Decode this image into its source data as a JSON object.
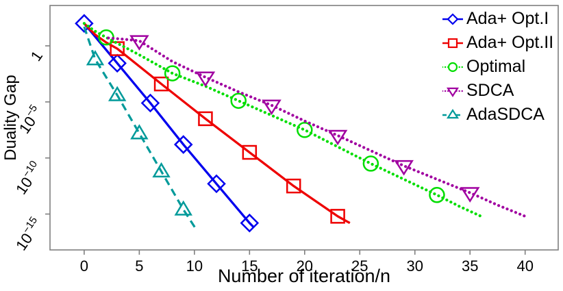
{
  "chart_data": {
    "type": "line",
    "title": "",
    "xlabel": "Number of iteration/n",
    "ylabel": "Duality Gap",
    "x_scale": "linear",
    "y_scale": "log10",
    "xlim": [
      -3.1,
      43.0
    ],
    "ylim_log10": [
      -18.2,
      3.6
    ],
    "x_ticks": [
      0,
      5,
      10,
      15,
      20,
      25,
      30,
      35,
      40
    ],
    "y_ticks": [
      {
        "log10": 0,
        "main": "1",
        "sup": ""
      },
      {
        "log10": -5,
        "main": "10",
        "sup": "−5"
      },
      {
        "log10": -10,
        "main": "10",
        "sup": "−10"
      },
      {
        "log10": -15,
        "main": "10",
        "sup": "−15"
      }
    ],
    "grid": false,
    "legend_position": "top-right",
    "frame_color": "#7f7f7f",
    "text_color": "#000000",
    "series": [
      {
        "name": "Ada+ Opt.I",
        "color": "#0000ee",
        "line_style": "solid",
        "marker": "diamond",
        "line": [
          [
            0,
            2.0
          ],
          [
            3,
            -1.55
          ],
          [
            6,
            -5.1
          ],
          [
            9,
            -8.8
          ],
          [
            12,
            -12.3
          ],
          [
            15,
            -15.8
          ],
          [
            15.4,
            -16.2
          ]
        ],
        "marker_points": [
          [
            0,
            2.0
          ],
          [
            3,
            -1.55
          ],
          [
            6,
            -5.1
          ],
          [
            9,
            -8.8
          ],
          [
            12,
            -12.3
          ],
          [
            15,
            -15.8
          ]
        ]
      },
      {
        "name": "Ada+ Opt.II",
        "color": "#ee0000",
        "line_style": "solid",
        "marker": "square",
        "line": [
          [
            0,
            2.0
          ],
          [
            1,
            1.0
          ],
          [
            2,
            0.3
          ],
          [
            3,
            -0.25
          ],
          [
            7,
            -3.4
          ],
          [
            11,
            -6.5
          ],
          [
            15,
            -9.5
          ],
          [
            19,
            -12.5
          ],
          [
            23,
            -15.2
          ],
          [
            24.1,
            -15.8
          ]
        ],
        "marker_points": [
          [
            3,
            -0.25
          ],
          [
            7,
            -3.4
          ],
          [
            11,
            -6.5
          ],
          [
            15,
            -9.5
          ],
          [
            19,
            -12.5
          ],
          [
            23,
            -15.2
          ]
        ]
      },
      {
        "name": "Optimal",
        "color": "#00dd00",
        "line_style": "dotted",
        "marker": "circle",
        "line": [
          [
            0,
            2.0
          ],
          [
            1,
            1.3
          ],
          [
            2,
            0.75
          ],
          [
            5,
            -0.8
          ],
          [
            8,
            -2.45
          ],
          [
            11,
            -3.6
          ],
          [
            14,
            -4.9
          ],
          [
            17,
            -6.2
          ],
          [
            20,
            -7.5
          ],
          [
            23,
            -9.0
          ],
          [
            26,
            -10.5
          ],
          [
            29,
            -11.9
          ],
          [
            32,
            -13.3
          ],
          [
            34,
            -14.3
          ],
          [
            36,
            -15.2
          ]
        ],
        "marker_points": [
          [
            2,
            0.75
          ],
          [
            8,
            -2.45
          ],
          [
            14,
            -4.9
          ],
          [
            20,
            -7.5
          ],
          [
            26,
            -10.5
          ],
          [
            32,
            -13.3
          ]
        ]
      },
      {
        "name": "SDCA",
        "color": "#a000a0",
        "line_style": "dotted",
        "marker": "triangle-down",
        "line": [
          [
            2.2,
            0.7
          ],
          [
            3.5,
            0.6
          ],
          [
            5,
            0.45
          ],
          [
            8,
            -1.4
          ],
          [
            11,
            -2.8
          ],
          [
            14,
            -4.1
          ],
          [
            17,
            -5.3
          ],
          [
            20,
            -6.7
          ],
          [
            23,
            -8.0
          ],
          [
            26,
            -9.35
          ],
          [
            29,
            -10.7
          ],
          [
            32,
            -11.9
          ],
          [
            35,
            -13.1
          ],
          [
            37.5,
            -14.2
          ],
          [
            40,
            -15.2
          ]
        ],
        "marker_points": [
          [
            5,
            0.45
          ],
          [
            11,
            -2.8
          ],
          [
            17,
            -5.3
          ],
          [
            23,
            -8.0
          ],
          [
            29,
            -10.7
          ],
          [
            35,
            -13.1
          ]
        ]
      },
      {
        "name": "AdaSDCA",
        "color": "#009a9a",
        "line_style": "dashed",
        "marker": "triangle-up",
        "line": [
          [
            0,
            1.7
          ],
          [
            1,
            -1.2
          ],
          [
            3,
            -4.4
          ],
          [
            5,
            -7.8
          ],
          [
            7,
            -11.2
          ],
          [
            9,
            -14.6
          ],
          [
            10.15,
            -16.35
          ]
        ],
        "marker_points": [
          [
            1,
            -1.2
          ],
          [
            3,
            -4.4
          ],
          [
            5,
            -7.8
          ],
          [
            7,
            -11.2
          ],
          [
            9,
            -14.6
          ]
        ]
      }
    ]
  }
}
